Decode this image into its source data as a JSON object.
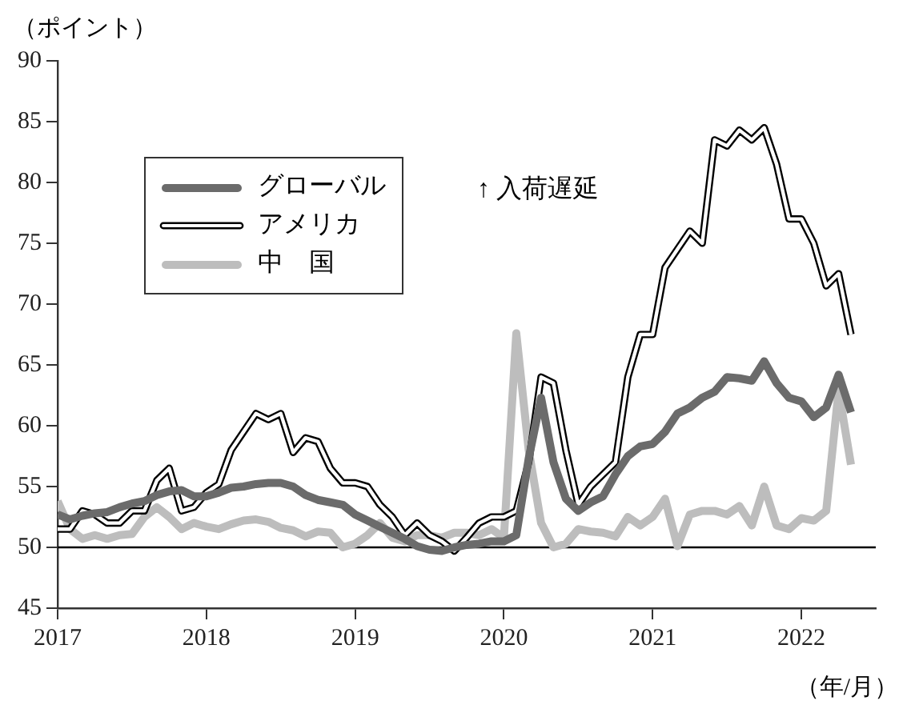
{
  "chart_data": {
    "type": "line",
    "ylabel": "（ポイント）",
    "xlabel": "（年/月）",
    "annotations": [
      "↑ 入荷遅延"
    ],
    "x": [
      "2017-01",
      "2017-02",
      "2017-03",
      "2017-04",
      "2017-05",
      "2017-06",
      "2017-07",
      "2017-08",
      "2017-09",
      "2017-10",
      "2017-11",
      "2017-12",
      "2018-01",
      "2018-02",
      "2018-03",
      "2018-04",
      "2018-05",
      "2018-06",
      "2018-07",
      "2018-08",
      "2018-09",
      "2018-10",
      "2018-11",
      "2018-12",
      "2019-01",
      "2019-02",
      "2019-03",
      "2019-04",
      "2019-05",
      "2019-06",
      "2019-07",
      "2019-08",
      "2019-09",
      "2019-10",
      "2019-11",
      "2019-12",
      "2020-01",
      "2020-02",
      "2020-03",
      "2020-04",
      "2020-05",
      "2020-06",
      "2020-07",
      "2020-08",
      "2020-09",
      "2020-10",
      "2020-11",
      "2020-12",
      "2021-01",
      "2021-02",
      "2021-03",
      "2021-04",
      "2021-05",
      "2021-06",
      "2021-07",
      "2021-08",
      "2021-09",
      "2021-10",
      "2021-11",
      "2021-12",
      "2022-01",
      "2022-02",
      "2022-03",
      "2022-04",
      "2022-05"
    ],
    "series": [
      {
        "name": "グローバル",
        "color": "#6b6b6b",
        "values": [
          52.7,
          52.3,
          52.6,
          52.8,
          52.9,
          53.3,
          53.6,
          53.8,
          54.3,
          54.6,
          54.7,
          54.2,
          54.2,
          54.5,
          54.9,
          55.0,
          55.2,
          55.3,
          55.3,
          55.0,
          54.3,
          53.9,
          53.7,
          53.5,
          52.7,
          52.2,
          51.7,
          51.2,
          50.7,
          50.1,
          49.8,
          49.7,
          50.0,
          50.2,
          50.3,
          50.5,
          50.5,
          51.0,
          57.3,
          62.3,
          57.0,
          54.0,
          53.0,
          53.7,
          54.2,
          56.0,
          57.5,
          58.3,
          58.5,
          59.5,
          61.0,
          61.5,
          62.3,
          62.8,
          64.0,
          63.9,
          63.7,
          65.3,
          63.5,
          62.3,
          62.0,
          60.7,
          61.5,
          64.2,
          61.1
        ]
      },
      {
        "name": "アメリカ",
        "color": "#ffffff",
        "values": [
          51.5,
          51.5,
          53.0,
          52.7,
          52.0,
          52.0,
          53.0,
          53.0,
          55.5,
          56.5,
          53.0,
          53.3,
          54.5,
          55.2,
          58.0,
          59.5,
          61.0,
          60.5,
          61.0,
          57.8,
          59.0,
          58.7,
          56.5,
          55.3,
          55.3,
          55.0,
          53.5,
          52.5,
          51.0,
          52.0,
          51.0,
          50.5,
          49.7,
          50.8,
          52.0,
          52.5,
          52.5,
          53.0,
          57.0,
          64.0,
          63.5,
          58.0,
          53.5,
          55.0,
          56.0,
          57.0,
          64.0,
          67.5,
          67.5,
          73.0,
          74.5,
          76.0,
          75.0,
          83.5,
          83.0,
          84.3,
          83.5,
          84.5,
          81.5,
          77.0,
          77.0,
          75.0,
          71.5,
          72.5,
          67.5
        ]
      },
      {
        "name": "中　国",
        "color": "#bdbdbd",
        "values": [
          53.8,
          51.5,
          50.7,
          51.0,
          50.7,
          51.0,
          51.1,
          52.5,
          53.3,
          52.5,
          51.5,
          52.0,
          51.7,
          51.5,
          51.9,
          52.2,
          52.3,
          52.1,
          51.6,
          51.4,
          50.9,
          51.3,
          51.2,
          50.0,
          50.3,
          51.0,
          52.0,
          50.8,
          50.5,
          51.0,
          51.0,
          50.8,
          51.2,
          51.2,
          51.0,
          51.5,
          50.8,
          67.6,
          58.0,
          52.0,
          50.0,
          50.3,
          51.5,
          51.3,
          51.2,
          50.9,
          52.5,
          51.8,
          52.5,
          54.0,
          50.1,
          52.7,
          53.0,
          53.0,
          52.7,
          53.4,
          51.8,
          55.0,
          51.8,
          51.5,
          52.4,
          52.2,
          53.0,
          62.9,
          56.8
        ]
      }
    ],
    "xlim": [
      "2017-01",
      "2022-07"
    ],
    "xticks": [
      "2017",
      "2018",
      "2019",
      "2020",
      "2021",
      "2022"
    ],
    "ylim": [
      45,
      90
    ],
    "yticks": [
      45,
      50,
      55,
      60,
      65,
      70,
      75,
      80,
      85,
      90
    ],
    "ref_lines": [
      {
        "axis": "y",
        "value": 50,
        "color": "#000000"
      }
    ],
    "grid": false,
    "legend": "top left",
    "line_style": "solid",
    "marker": "none"
  }
}
